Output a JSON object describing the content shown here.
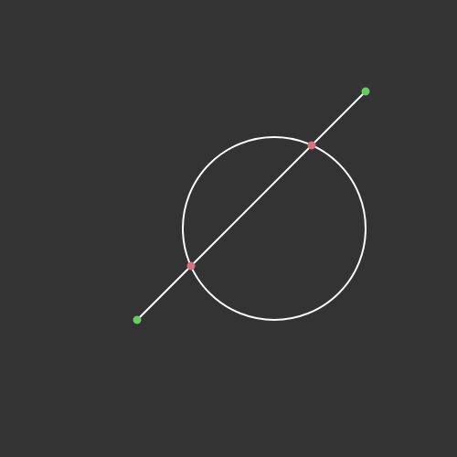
{
  "scene": {
    "background_color": "#333333",
    "stroke_color": "#ffffff",
    "endpoint_color": "#66cc66",
    "intersection_color": "#d9707d"
  }
}
